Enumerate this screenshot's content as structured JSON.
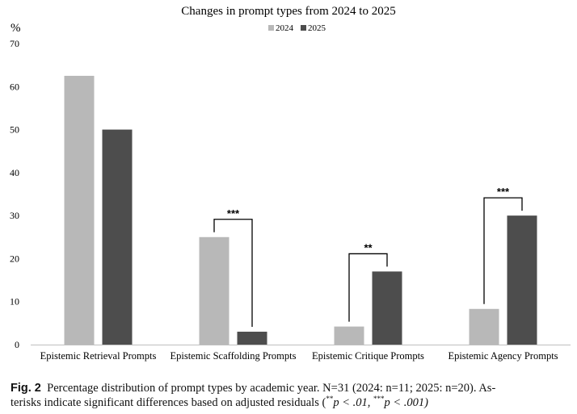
{
  "chart_data": {
    "type": "bar",
    "title": "Changes in prompt types from 2024 to 2025",
    "ylabel": "%",
    "xlabel": "",
    "ylim": [
      0,
      70
    ],
    "yticks": [
      0,
      10,
      20,
      30,
      40,
      50,
      60,
      70
    ],
    "grid": false,
    "legend_position": "top-center",
    "categories": [
      "Epistemic Retrieval Prompts",
      "Epistemic Scaffolding Prompts",
      "Epistemic Critique Prompts",
      "Epistemic Agency Prompts"
    ],
    "series": [
      {
        "name": "2024",
        "color": "#b8b8b8",
        "values": [
          62.5,
          25,
          4.2,
          8.3
        ]
      },
      {
        "name": "2025",
        "color": "#4d4d4d",
        "values": [
          50,
          3,
          17,
          30
        ]
      }
    ],
    "annotations": [
      "",
      "***",
      "**",
      "***"
    ]
  },
  "caption": {
    "label": "Fig. 2",
    "line1": "Percentage distribution of prompt types by academic year. N=31 (2024: n=11; 2025: n=20). As-",
    "line2_pre": "terisks indicate significant differences based on adjusted residuals (",
    "sig1": "**",
    "p1": "p < .01, ",
    "sig2": "***",
    "p2": "p < .001)"
  }
}
